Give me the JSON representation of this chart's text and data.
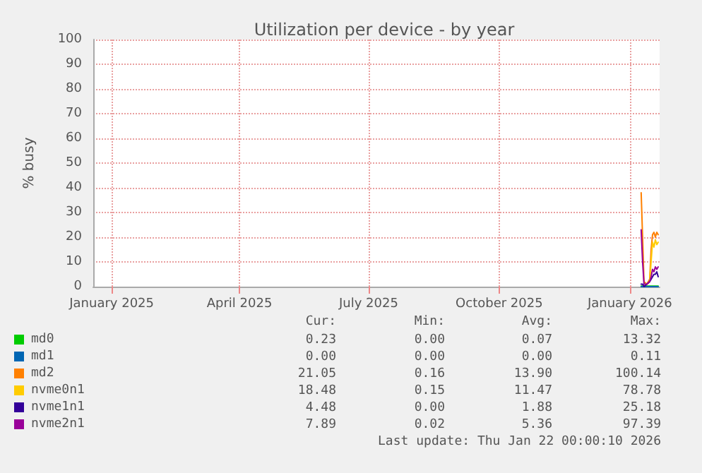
{
  "chart_data": {
    "type": "line",
    "title": "Utilization per device - by year",
    "ylabel": "% busy",
    "x": [
      "2026-01-09",
      "2026-01-10",
      "2026-01-11",
      "2026-01-13",
      "2026-01-15",
      "2026-01-16",
      "2026-01-17",
      "2026-01-18",
      "2026-01-19",
      "2026-01-20",
      "2026-01-21"
    ],
    "series": [
      {
        "name": "md0",
        "color": "#00cc00",
        "values": [
          0.2,
          0.2,
          0.2,
          0.2,
          0.2,
          0.2,
          0.2,
          0.2,
          0.2,
          0.2,
          0.2
        ]
      },
      {
        "name": "md1",
        "color": "#0066b3",
        "values": [
          0,
          0,
          0,
          0,
          0,
          0,
          0,
          0,
          0,
          0,
          0
        ]
      },
      {
        "name": "md2",
        "color": "#ff8000",
        "values": [
          38,
          20,
          2,
          1,
          3,
          15,
          21,
          22,
          20,
          22,
          21
        ]
      },
      {
        "name": "nvme0n1",
        "color": "#ffcc00",
        "values": [
          null,
          null,
          1,
          1,
          2,
          10,
          18,
          16,
          19,
          17,
          18
        ]
      },
      {
        "name": "nvme1n1",
        "color": "#330099",
        "values": [
          1,
          1,
          0,
          1,
          2,
          3,
          4,
          5,
          5,
          6,
          4
        ]
      },
      {
        "name": "nvme2n1",
        "color": "#990099",
        "values": [
          23,
          10,
          1,
          1,
          2,
          4,
          7,
          6,
          8,
          7,
          8
        ]
      }
    ],
    "xlim": [
      "2024-12-19",
      "2026-01-22"
    ],
    "xticks": [
      {
        "value": "2025-01-01",
        "label": "January 2025"
      },
      {
        "value": "2025-04-01",
        "label": "April 2025"
      },
      {
        "value": "2025-07-01",
        "label": "July 2025"
      },
      {
        "value": "2025-10-01",
        "label": "October 2025"
      },
      {
        "value": "2026-01-01",
        "label": "January 2026"
      }
    ],
    "ylim": [
      0,
      100
    ],
    "yticks": [
      0,
      10,
      20,
      30,
      40,
      50,
      60,
      70,
      80,
      90,
      100
    ],
    "grid": true,
    "legend": "bottom left",
    "marker": "none",
    "line_style": "solid",
    "annotations": [
      "Cur:",
      "Min:",
      "Avg:",
      "Max:",
      "0.23",
      "0.00",
      "0.07",
      "13.32",
      "0.00",
      "0.00",
      "0.00",
      "0.11",
      "21.05",
      "0.16",
      "13.90",
      "100.14",
      "18.48",
      "0.15",
      "11.47",
      "78.78",
      "4.48",
      "0.00",
      "1.88",
      "25.18",
      "7.89",
      "0.02",
      "5.36",
      "97.39",
      "Last update: Thu Jan 22 00:00:10 2026"
    ]
  }
}
